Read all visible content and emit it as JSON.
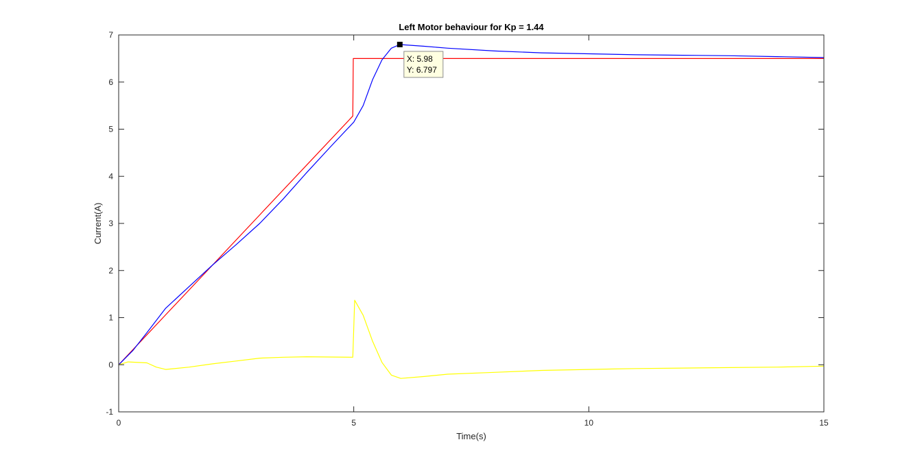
{
  "chart_data": {
    "type": "line",
    "title": "Left Motor behaviour for Kp = 1.44",
    "xlabel": "Time(s)",
    "ylabel": "Current(A)",
    "xlim": [
      0,
      15
    ],
    "ylim": [
      -1,
      7
    ],
    "x_ticks": [
      "0",
      "5",
      "10",
      "15"
    ],
    "y_ticks": [
      "-1",
      "0",
      "1",
      "2",
      "3",
      "4",
      "5",
      "6",
      "7"
    ],
    "grid": false,
    "legend": "none",
    "series": [
      {
        "color": "#ff0000",
        "points": [
          [
            0,
            0
          ],
          [
            0.5,
            0.53
          ],
          [
            1,
            1.06
          ],
          [
            2,
            2.12
          ],
          [
            3,
            3.18
          ],
          [
            4,
            4.24
          ],
          [
            4.98,
            5.28
          ],
          [
            4.99,
            6.5
          ],
          [
            15,
            6.5
          ]
        ]
      },
      {
        "color": "#0000ff",
        "points": [
          [
            0,
            0
          ],
          [
            0.3,
            0.3
          ],
          [
            0.6,
            0.68
          ],
          [
            1,
            1.2
          ],
          [
            1.5,
            1.66
          ],
          [
            2,
            2.12
          ],
          [
            2.5,
            2.55
          ],
          [
            3,
            3.0
          ],
          [
            3.5,
            3.52
          ],
          [
            4,
            4.08
          ],
          [
            4.5,
            4.62
          ],
          [
            5,
            5.15
          ],
          [
            5.2,
            5.5
          ],
          [
            5.4,
            6.05
          ],
          [
            5.6,
            6.47
          ],
          [
            5.8,
            6.72
          ],
          [
            5.98,
            6.797
          ],
          [
            6.5,
            6.76
          ],
          [
            7,
            6.72
          ],
          [
            8,
            6.66
          ],
          [
            9,
            6.62
          ],
          [
            10,
            6.6
          ],
          [
            11,
            6.58
          ],
          [
            12,
            6.57
          ],
          [
            13,
            6.56
          ],
          [
            14,
            6.54
          ],
          [
            15,
            6.52
          ]
        ]
      },
      {
        "color": "#ffff00",
        "points": [
          [
            0,
            0
          ],
          [
            0.2,
            0.06
          ],
          [
            0.6,
            0.04
          ],
          [
            0.8,
            -0.05
          ],
          [
            1,
            -0.1
          ],
          [
            1.5,
            -0.05
          ],
          [
            2,
            0.02
          ],
          [
            2.5,
            0.08
          ],
          [
            3,
            0.14
          ],
          [
            3.5,
            0.16
          ],
          [
            4,
            0.17
          ],
          [
            4.98,
            0.16
          ],
          [
            5.02,
            1.37
          ],
          [
            5.2,
            1.05
          ],
          [
            5.4,
            0.5
          ],
          [
            5.6,
            0.05
          ],
          [
            5.8,
            -0.22
          ],
          [
            6,
            -0.29
          ],
          [
            6.5,
            -0.25
          ],
          [
            7,
            -0.2
          ],
          [
            8,
            -0.16
          ],
          [
            9,
            -0.12
          ],
          [
            10,
            -0.1
          ],
          [
            11,
            -0.08
          ],
          [
            12,
            -0.07
          ],
          [
            13,
            -0.06
          ],
          [
            14,
            -0.05
          ],
          [
            15,
            -0.03
          ]
        ]
      }
    ],
    "datatip": {
      "x": 5.98,
      "y": 6.797,
      "x_text": "X: 5.98",
      "y_text": "Y: 6.797"
    }
  }
}
